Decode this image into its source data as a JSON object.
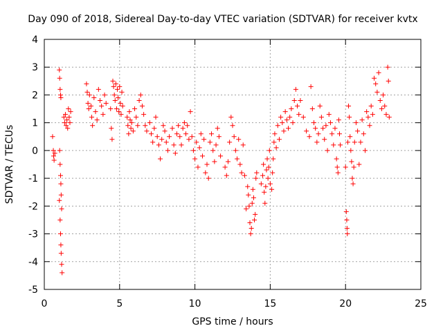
{
  "chart_data": {
    "type": "scatter",
    "title": "Day 090 of 2018, Sidereal Day-to-day VTEC variation (SDTVAR) for receiver kvtx",
    "xlabel": "GPS time / hours",
    "ylabel": "SDTVAR / TECUs",
    "xlim": [
      0,
      25
    ],
    "ylim": [
      -5,
      4
    ],
    "grid": true,
    "x_ticks": [
      "0",
      "5",
      "10",
      "15",
      "20",
      "25"
    ],
    "y_ticks": [
      "-5",
      "-4",
      "-3",
      "-2",
      "-1",
      "0",
      "1",
      "2",
      "3",
      "4"
    ],
    "marker": "plus",
    "colors": {
      "series": "#ff0000",
      "grid": "#a0a0a0",
      "axes": "#000000"
    },
    "series": [
      {
        "name": "SDTVAR kvtx",
        "points": [
          [
            0.55,
            0.5
          ],
          [
            0.6,
            0.0
          ],
          [
            0.62,
            -0.2
          ],
          [
            0.65,
            -0.35
          ],
          [
            0.7,
            -0.1
          ],
          [
            1.0,
            2.9
          ],
          [
            1.02,
            2.6
          ],
          [
            1.05,
            2.2
          ],
          [
            1.08,
            2.0
          ],
          [
            1.1,
            1.9
          ],
          [
            1.02,
            0.0
          ],
          [
            1.05,
            -0.5
          ],
          [
            1.08,
            -0.9
          ],
          [
            1.1,
            -1.2
          ],
          [
            1.12,
            -1.6
          ],
          [
            1.15,
            -2.1
          ],
          [
            1.0,
            -1.8
          ],
          [
            1.05,
            -2.5
          ],
          [
            1.08,
            -3.0
          ],
          [
            1.1,
            -3.4
          ],
          [
            1.12,
            -3.7
          ],
          [
            1.15,
            -4.1
          ],
          [
            1.18,
            -4.4
          ],
          [
            1.3,
            1.2
          ],
          [
            1.35,
            1.0
          ],
          [
            1.4,
            1.3
          ],
          [
            1.45,
            0.9
          ],
          [
            1.5,
            1.1
          ],
          [
            1.55,
            0.8
          ],
          [
            1.6,
            1.5
          ],
          [
            1.65,
            1.2
          ],
          [
            1.7,
            1.0
          ],
          [
            1.75,
            1.4
          ],
          [
            2.8,
            2.4
          ],
          [
            2.85,
            2.1
          ],
          [
            2.9,
            1.7
          ],
          [
            2.95,
            1.5
          ],
          [
            3.0,
            2.0
          ],
          [
            3.1,
            1.6
          ],
          [
            3.15,
            1.2
          ],
          [
            3.2,
            0.9
          ],
          [
            3.3,
            1.9
          ],
          [
            3.4,
            1.4
          ],
          [
            3.5,
            1.1
          ],
          [
            3.6,
            2.2
          ],
          [
            3.7,
            1.8
          ],
          [
            3.8,
            1.6
          ],
          [
            3.9,
            1.3
          ],
          [
            4.0,
            2.0
          ],
          [
            4.1,
            1.7
          ],
          [
            4.4,
            1.5
          ],
          [
            4.45,
            0.8
          ],
          [
            4.5,
            0.4
          ],
          [
            4.55,
            2.5
          ],
          [
            4.6,
            2.3
          ],
          [
            4.65,
            2.0
          ],
          [
            4.7,
            1.8
          ],
          [
            4.75,
            2.4
          ],
          [
            4.8,
            1.5
          ],
          [
            4.85,
            2.2
          ],
          [
            4.9,
            1.9
          ],
          [
            4.95,
            1.4
          ],
          [
            5.0,
            2.3
          ],
          [
            5.05,
            1.7
          ],
          [
            5.1,
            1.3
          ],
          [
            5.15,
            2.1
          ],
          [
            5.2,
            1.6
          ],
          [
            5.5,
            1.2
          ],
          [
            5.55,
            0.9
          ],
          [
            5.6,
            0.6
          ],
          [
            5.65,
            1.4
          ],
          [
            5.7,
            1.1
          ],
          [
            5.75,
            0.8
          ],
          [
            5.8,
            1.0
          ],
          [
            5.9,
            0.7
          ],
          [
            6.0,
            1.5
          ],
          [
            6.1,
            1.2
          ],
          [
            6.2,
            0.9
          ],
          [
            6.3,
            1.8
          ],
          [
            6.4,
            2.0
          ],
          [
            6.5,
            1.6
          ],
          [
            6.6,
            1.3
          ],
          [
            6.7,
            0.9
          ],
          [
            6.8,
            0.7
          ],
          [
            7.0,
            1.0
          ],
          [
            7.1,
            0.6
          ],
          [
            7.2,
            0.3
          ],
          [
            7.3,
            0.8
          ],
          [
            7.4,
            1.2
          ],
          [
            7.5,
            0.5
          ],
          [
            7.6,
            0.2
          ],
          [
            7.7,
            -0.3
          ],
          [
            7.8,
            0.4
          ],
          [
            7.9,
            0.9
          ],
          [
            8.0,
            0.7
          ],
          [
            8.1,
            0.3
          ],
          [
            8.2,
            0.0
          ],
          [
            8.3,
            0.5
          ],
          [
            8.5,
            0.8
          ],
          [
            8.6,
            0.2
          ],
          [
            8.7,
            -0.1
          ],
          [
            8.8,
            0.6
          ],
          [
            8.9,
            0.9
          ],
          [
            9.0,
            0.5
          ],
          [
            9.1,
            0.2
          ],
          [
            9.2,
            0.8
          ],
          [
            9.3,
            1.0
          ],
          [
            9.4,
            0.6
          ],
          [
            9.5,
            0.9
          ],
          [
            9.6,
            0.4
          ],
          [
            9.7,
            1.4
          ],
          [
            9.8,
            0.5
          ],
          [
            9.9,
            0.0
          ],
          [
            10.0,
            -0.3
          ],
          [
            10.1,
            0.3
          ],
          [
            10.2,
            -0.6
          ],
          [
            10.3,
            0.1
          ],
          [
            10.4,
            0.6
          ],
          [
            10.5,
            -0.2
          ],
          [
            10.6,
            0.4
          ],
          [
            10.7,
            -0.8
          ],
          [
            10.8,
            -0.5
          ],
          [
            10.9,
            -1.0
          ],
          [
            11.0,
            0.3
          ],
          [
            11.1,
            0.6
          ],
          [
            11.2,
            0.0
          ],
          [
            11.3,
            -0.4
          ],
          [
            11.4,
            0.2
          ],
          [
            11.5,
            0.8
          ],
          [
            11.6,
            0.5
          ],
          [
            11.7,
            -0.2
          ],
          [
            12.0,
            -0.6
          ],
          [
            12.1,
            -0.9
          ],
          [
            12.2,
            -0.4
          ],
          [
            12.3,
            0.3
          ],
          [
            12.4,
            1.2
          ],
          [
            12.5,
            0.9
          ],
          [
            12.6,
            0.5
          ],
          [
            12.7,
            0.0
          ],
          [
            12.8,
            -0.3
          ],
          [
            12.9,
            0.4
          ],
          [
            13.0,
            -0.5
          ],
          [
            13.1,
            -0.8
          ],
          [
            13.2,
            0.2
          ],
          [
            13.3,
            -0.9
          ],
          [
            13.4,
            -2.1
          ],
          [
            13.5,
            -1.3
          ],
          [
            13.55,
            -1.6
          ],
          [
            13.6,
            -2.0
          ],
          [
            13.65,
            -2.6
          ],
          [
            13.7,
            -3.0
          ],
          [
            13.75,
            -2.8
          ],
          [
            13.8,
            -1.9
          ],
          [
            13.85,
            -1.4
          ],
          [
            13.9,
            -1.7
          ],
          [
            13.95,
            -2.5
          ],
          [
            14.0,
            -2.3
          ],
          [
            14.05,
            -1.0
          ],
          [
            14.1,
            -0.8
          ],
          [
            14.4,
            -1.2
          ],
          [
            14.5,
            -0.9
          ],
          [
            14.55,
            -0.5
          ],
          [
            14.6,
            -1.5
          ],
          [
            14.65,
            -1.9
          ],
          [
            14.7,
            -1.3
          ],
          [
            14.75,
            -0.7
          ],
          [
            14.8,
            -0.3
          ],
          [
            14.85,
            -1.0
          ],
          [
            14.9,
            -0.6
          ],
          [
            14.95,
            0.0
          ],
          [
            15.0,
            -1.2
          ],
          [
            15.1,
            -1.4
          ],
          [
            15.15,
            -0.8
          ],
          [
            15.2,
            -0.3
          ],
          [
            15.25,
            0.3
          ],
          [
            15.3,
            0.6
          ],
          [
            15.4,
            0.1
          ],
          [
            15.5,
            0.9
          ],
          [
            15.6,
            0.4
          ],
          [
            15.7,
            1.2
          ],
          [
            15.8,
            1.0
          ],
          [
            15.9,
            0.7
          ],
          [
            16.0,
            1.4
          ],
          [
            16.1,
            1.1
          ],
          [
            16.2,
            0.8
          ],
          [
            16.3,
            1.2
          ],
          [
            16.4,
            1.5
          ],
          [
            16.5,
            1.0
          ],
          [
            16.6,
            1.8
          ],
          [
            16.7,
            2.2
          ],
          [
            16.8,
            1.6
          ],
          [
            16.9,
            1.3
          ],
          [
            17.0,
            1.8
          ],
          [
            17.2,
            1.2
          ],
          [
            17.4,
            0.7
          ],
          [
            17.6,
            0.5
          ],
          [
            17.7,
            2.3
          ],
          [
            17.8,
            1.5
          ],
          [
            17.9,
            1.0
          ],
          [
            18.0,
            0.8
          ],
          [
            18.1,
            0.3
          ],
          [
            18.2,
            0.6
          ],
          [
            18.3,
            1.6
          ],
          [
            18.4,
            1.2
          ],
          [
            18.5,
            0.8
          ],
          [
            18.6,
            0.4
          ],
          [
            18.7,
            0.9
          ],
          [
            18.8,
            0.0
          ],
          [
            18.9,
            1.3
          ],
          [
            19.0,
            1.0
          ],
          [
            19.1,
            0.6
          ],
          [
            19.2,
            0.2
          ],
          [
            19.3,
            0.8
          ],
          [
            19.4,
            -0.3
          ],
          [
            19.45,
            -0.6
          ],
          [
            19.5,
            -0.8
          ],
          [
            19.55,
            1.1
          ],
          [
            19.6,
            0.6
          ],
          [
            19.65,
            0.2
          ],
          [
            20.0,
            -0.6
          ],
          [
            20.05,
            -2.2
          ],
          [
            20.08,
            -2.5
          ],
          [
            20.1,
            -2.8
          ],
          [
            20.12,
            -3.0
          ],
          [
            20.15,
            0.3
          ],
          [
            20.2,
            1.6
          ],
          [
            20.25,
            1.2
          ],
          [
            20.3,
            0.5
          ],
          [
            20.35,
            0.0
          ],
          [
            20.4,
            -0.4
          ],
          [
            20.45,
            -1.0
          ],
          [
            20.5,
            -1.2
          ],
          [
            20.55,
            -0.6
          ],
          [
            20.6,
            0.3
          ],
          [
            20.7,
            1.0
          ],
          [
            20.8,
            0.7
          ],
          [
            20.9,
            -0.5
          ],
          [
            21.0,
            0.3
          ],
          [
            21.1,
            1.1
          ],
          [
            21.2,
            0.6
          ],
          [
            21.3,
            0.0
          ],
          [
            21.4,
            1.4
          ],
          [
            21.5,
            1.2
          ],
          [
            21.6,
            0.9
          ],
          [
            21.7,
            1.6
          ],
          [
            21.8,
            1.3
          ],
          [
            21.9,
            2.6
          ],
          [
            22.0,
            2.4
          ],
          [
            22.1,
            2.1
          ],
          [
            22.2,
            2.8
          ],
          [
            22.3,
            1.8
          ],
          [
            22.4,
            1.5
          ],
          [
            22.5,
            2.0
          ],
          [
            22.6,
            1.6
          ],
          [
            22.7,
            1.3
          ],
          [
            22.8,
            3.0
          ],
          [
            22.85,
            2.5
          ],
          [
            22.9,
            1.2
          ]
        ]
      }
    ]
  }
}
